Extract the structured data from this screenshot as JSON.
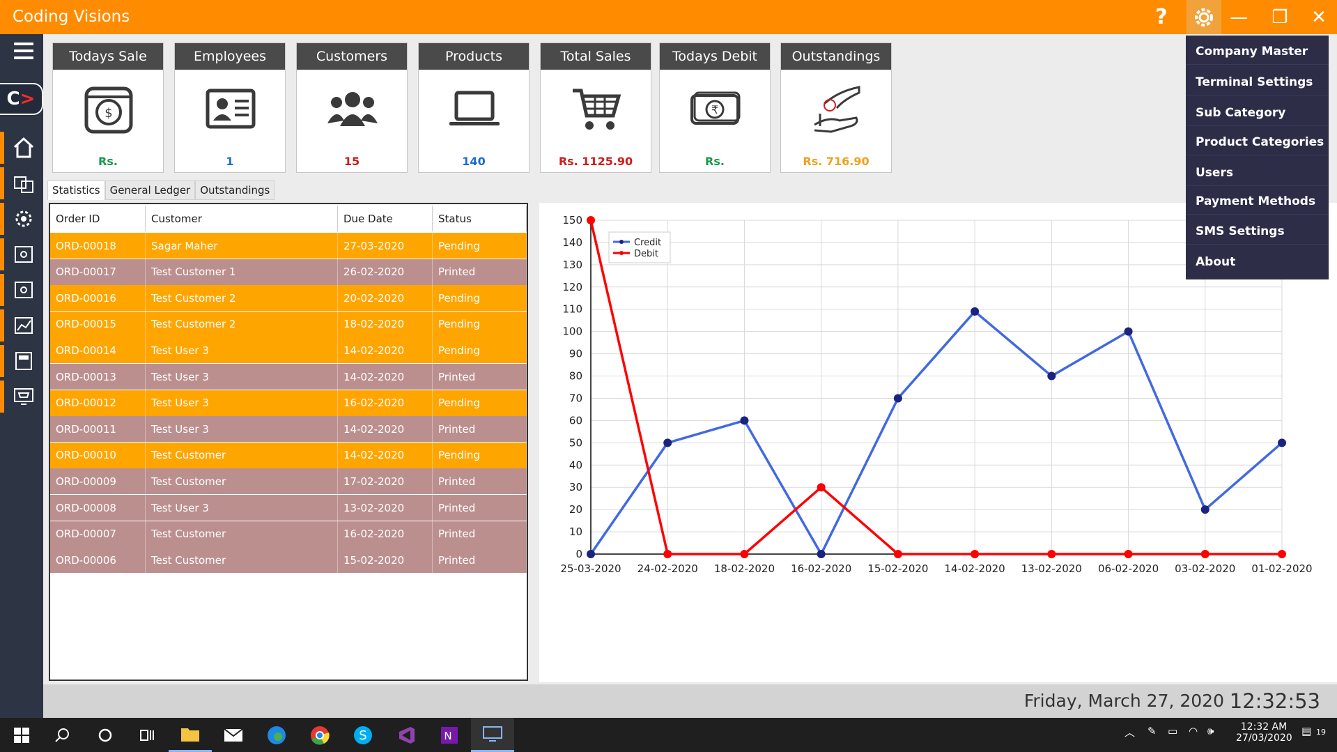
{
  "app": {
    "title": "Coding Visions"
  },
  "titlebar": {
    "help": "?",
    "minimize": "—",
    "maximize": "❐",
    "close": "✕"
  },
  "cards": [
    {
      "title": "Todays Sale",
      "value": "Rs.",
      "color": "#1a9a4e",
      "icon": "safe-icon"
    },
    {
      "title": "Employees",
      "value": "1",
      "color": "#1c6cd4",
      "icon": "id-card-icon"
    },
    {
      "title": "Customers",
      "value": "15",
      "color": "#d11b1b",
      "icon": "group-icon"
    },
    {
      "title": "Products",
      "value": "140",
      "color": "#1c6cd4",
      "icon": "laptop-icon"
    },
    {
      "title": "Total Sales",
      "value": "Rs. 1125.90",
      "color": "#d11b1b",
      "icon": "cart-icon"
    },
    {
      "title": "Todays Debit",
      "value": "Rs.",
      "color": "#1a9a4e",
      "icon": "money-icon"
    },
    {
      "title": "Outstandings",
      "value": "Rs. 716.90",
      "color": "#f0a11c",
      "icon": "hand-coin-icon"
    }
  ],
  "tabs": [
    "Statistics",
    "General Ledger",
    "Outstandings"
  ],
  "grid": {
    "headers": [
      "Order ID",
      "Customer",
      "Due Date",
      "Status"
    ],
    "rows": [
      [
        "ORD-00018",
        "Sagar Maher",
        "27-03-2020",
        "Pending"
      ],
      [
        "ORD-00017",
        "Test Customer 1",
        "26-02-2020",
        "Printed"
      ],
      [
        "ORD-00016",
        "Test Customer 2",
        "20-02-2020",
        "Pending"
      ],
      [
        "ORD-00015",
        "Test Customer 2",
        "18-02-2020",
        "Pending"
      ],
      [
        "ORD-00014",
        "Test User 3",
        "14-02-2020",
        "Pending"
      ],
      [
        "ORD-00013",
        "Test User 3",
        "14-02-2020",
        "Printed"
      ],
      [
        "ORD-00012",
        "Test User 3",
        "16-02-2020",
        "Pending"
      ],
      [
        "ORD-00011",
        "Test User 3",
        "14-02-2020",
        "Printed"
      ],
      [
        "ORD-00010",
        "Test Customer",
        "14-02-2020",
        "Pending"
      ],
      [
        "ORD-00009",
        "Test Customer",
        "17-02-2020",
        "Printed"
      ],
      [
        "ORD-00008",
        "Test User 3",
        "13-02-2020",
        "Printed"
      ],
      [
        "ORD-00007",
        "Test Customer",
        "16-02-2020",
        "Printed"
      ],
      [
        "ORD-00006",
        "Test Customer",
        "15-02-2020",
        "Printed"
      ]
    ]
  },
  "chart_data": {
    "type": "line",
    "categories": [
      "25-03-2020",
      "24-02-2020",
      "18-02-2020",
      "16-02-2020",
      "15-02-2020",
      "14-02-2020",
      "13-02-2020",
      "06-02-2020",
      "03-02-2020",
      "01-02-2020"
    ],
    "series": [
      {
        "name": "Credit",
        "color": "#4169e1",
        "values": [
          0,
          50,
          60,
          0,
          70,
          109,
          80,
          100,
          20,
          50
        ]
      },
      {
        "name": "Debit",
        "color": "#ff0000",
        "values": [
          150,
          0,
          0,
          30,
          0,
          0,
          0,
          0,
          0,
          0
        ]
      }
    ],
    "ylim": [
      0,
      150
    ],
    "yticks": [
      0,
      10,
      20,
      30,
      40,
      50,
      60,
      70,
      80,
      90,
      100,
      110,
      120,
      130,
      140,
      150
    ],
    "grid": true,
    "legend": "top-left"
  },
  "menu": [
    "Company Master",
    "Terminal Settings",
    "Sub Category",
    "Product Categories",
    "Users",
    "Payment Methods",
    "SMS Settings",
    "About"
  ],
  "status": {
    "date": "Friday, March 27, 2020",
    "time": "12:32:53"
  },
  "taskbar": {
    "clock_time": "12:32 AM",
    "clock_date": "27/03/2020",
    "notifications": "19"
  },
  "colors": {
    "accent": "#ff8c00",
    "pending": "#ffa500",
    "printed": "#bc8f8f",
    "sidebar": "#2d3444",
    "menu": "#2d2d48"
  }
}
